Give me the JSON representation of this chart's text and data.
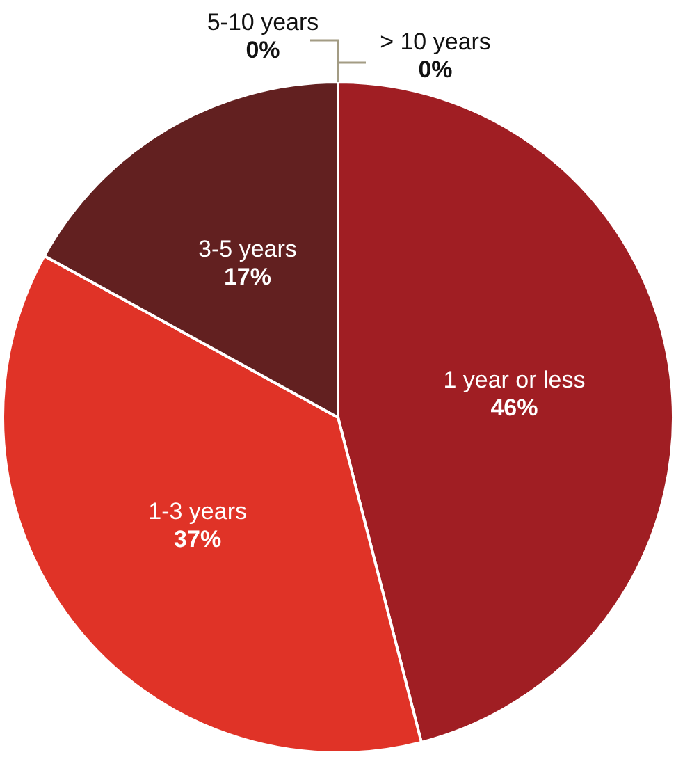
{
  "chart_data": {
    "type": "pie",
    "categories": [
      "1 year or less",
      "1-3 years",
      "3-5 years",
      "5-10 years",
      "> 10 years"
    ],
    "values": [
      46,
      37,
      17,
      0,
      0
    ],
    "colors": [
      "#a01e23",
      "#e03327",
      "#622020",
      "#8b1c1f",
      "#a11e22"
    ],
    "value_labels": [
      "46%",
      "37%",
      "17%",
      "0%",
      "0%"
    ],
    "legend": false
  }
}
